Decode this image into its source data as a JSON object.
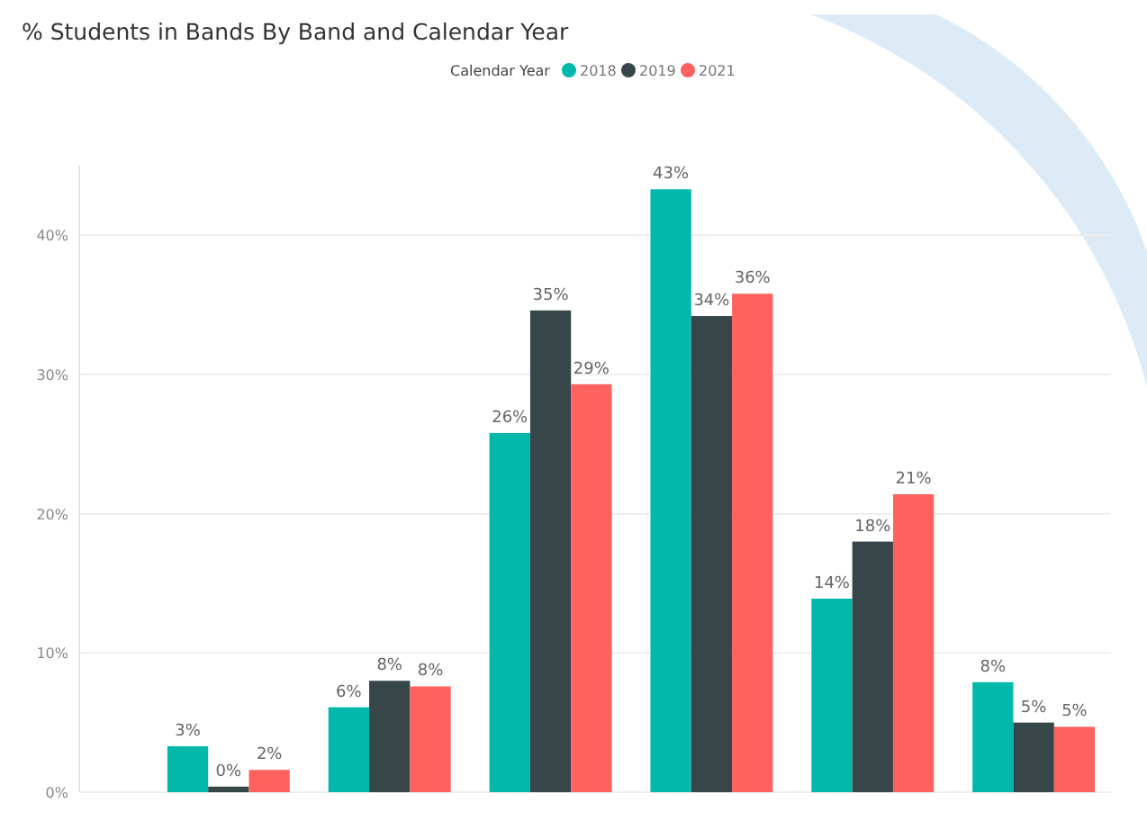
{
  "chart_data": {
    "type": "bar",
    "title": "% Students in Bands By Band and Calendar Year",
    "legend_title": "Calendar Year",
    "categories": [
      null,
      null,
      null,
      null,
      null,
      null
    ],
    "series": [
      {
        "name": "2018",
        "color": "#01b8aa",
        "values": [
          3.3,
          6.1,
          25.8,
          43.3,
          13.9,
          7.9
        ],
        "value_labels": [
          "3%",
          "6%",
          "26%",
          "43%",
          "14%",
          "8%"
        ]
      },
      {
        "name": "2019",
        "color": "#374649",
        "values": [
          0.4,
          8.0,
          34.6,
          34.2,
          18.0,
          5.0
        ],
        "value_labels": [
          "0%",
          "8%",
          "35%",
          "34%",
          "18%",
          "5%"
        ]
      },
      {
        "name": "2021",
        "color": "#fd625e",
        "values": [
          1.6,
          7.6,
          29.3,
          35.8,
          21.4,
          4.7
        ],
        "value_labels": [
          "2%",
          "8%",
          "29%",
          "36%",
          "21%",
          "5%"
        ]
      }
    ],
    "ylim": [
      0,
      45
    ],
    "yticks": [
      {
        "value": 0,
        "label": "0%"
      },
      {
        "value": 10,
        "label": "10%"
      },
      {
        "value": 20,
        "label": "20%"
      },
      {
        "value": 30,
        "label": "30%"
      },
      {
        "value": 40,
        "label": "40%"
      }
    ],
    "grid": "y",
    "legend": "top"
  }
}
